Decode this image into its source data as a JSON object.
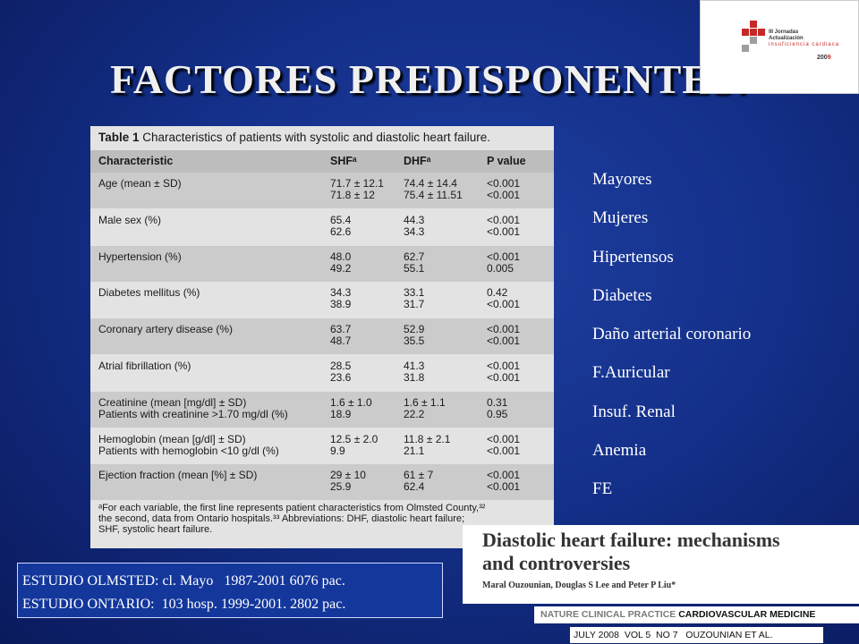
{
  "slide": {
    "title": "FACTORES PREDISPONENTES:"
  },
  "logo": {
    "line1": "III Jornadas",
    "line2": "Actualización",
    "line3": "insuficiencia cardiaca",
    "year_prefix": "200",
    "year_suffix": "9"
  },
  "table": {
    "caption_label": "Table 1",
    "caption_text": " Characteristics of patients with systolic and diastolic heart failure.",
    "headers": [
      "Characteristic",
      "SHFᵃ",
      "DHFᵃ",
      "P value"
    ],
    "rows": [
      {
        "characteristic": [
          "Age (mean ± SD)",
          ""
        ],
        "shf": [
          "71.7 ± 12.1",
          "71.8 ± 12"
        ],
        "dhf": [
          "74.4 ± 14.4",
          "75.4 ± 11.51"
        ],
        "p": [
          "<0.001",
          "<0.001"
        ]
      },
      {
        "characteristic": [
          "Male sex (%)",
          ""
        ],
        "shf": [
          "65.4",
          "62.6"
        ],
        "dhf": [
          "44.3",
          "34.3"
        ],
        "p": [
          "<0.001",
          "<0.001"
        ]
      },
      {
        "characteristic": [
          "Hypertension (%)",
          ""
        ],
        "shf": [
          "48.0",
          "49.2"
        ],
        "dhf": [
          "62.7",
          "55.1"
        ],
        "p": [
          "<0.001",
          "0.005"
        ]
      },
      {
        "characteristic": [
          "Diabetes mellitus (%)",
          ""
        ],
        "shf": [
          "34.3",
          "38.9"
        ],
        "dhf": [
          "33.1",
          "31.7"
        ],
        "p": [
          "0.42",
          "<0.001"
        ]
      },
      {
        "characteristic": [
          "Coronary artery disease (%)",
          ""
        ],
        "shf": [
          "63.7",
          "48.7"
        ],
        "dhf": [
          "52.9",
          "35.5"
        ],
        "p": [
          "<0.001",
          "<0.001"
        ]
      },
      {
        "characteristic": [
          "Atrial fibrillation (%)",
          ""
        ],
        "shf": [
          "28.5",
          "23.6"
        ],
        "dhf": [
          "41.3",
          "31.8"
        ],
        "p": [
          "<0.001",
          "<0.001"
        ]
      },
      {
        "characteristic": [
          "Creatinine (mean [mg/dl] ± SD)",
          "Patients with creatinine >1.70 mg/dl (%)"
        ],
        "shf": [
          "1.6 ± 1.0",
          "18.9"
        ],
        "dhf": [
          "1.6 ± 1.1",
          "22.2"
        ],
        "p": [
          "0.31",
          "0.95"
        ]
      },
      {
        "characteristic": [
          "Hemoglobin (mean [g/dl] ± SD)",
          "Patients with hemoglobin <10 g/dl (%)"
        ],
        "shf": [
          "12.5 ± 2.0",
          "9.9"
        ],
        "dhf": [
          "11.8 ± 2.1",
          "21.1"
        ],
        "p": [
          "<0.001",
          "<0.001"
        ]
      },
      {
        "characteristic": [
          "Ejection fraction (mean [%] ± SD)",
          ""
        ],
        "shf": [
          "29 ± 10",
          "25.9"
        ],
        "dhf": [
          "61 ± 7",
          "62.4"
        ],
        "p": [
          "<0.001",
          "<0.001"
        ]
      }
    ],
    "footnote_lines": [
      "ᵃFor each variable, the first line represents patient characteristics from Olmsted County,³²",
      "the second, data from Ontario hospitals.³³ Abbreviations: DHF, diastolic heart failure;",
      "SHF, systolic heart failure."
    ]
  },
  "factors": [
    "Mayores",
    "Mujeres",
    "Hipertensos",
    "Diabetes",
    "Daño arterial coronario",
    "F.Auricular",
    "Insuf. Renal",
    "Anemia",
    "FE"
  ],
  "studies": {
    "line1": "ESTUDIO OLMSTED: cl. Mayo   1987-2001 6076 pac.",
    "line2": "ESTUDIO ONTARIO:  103 hosp. 1999-2001. 2802 pac."
  },
  "article": {
    "title_line1": "Diastolic heart failure: mechanisms",
    "title_line2": "and controversies",
    "authors": "Maral Ouzounian, Douglas S Lee and Peter P Liu*",
    "journal_gray": "NATURE CLINICAL PRACTICE",
    "journal_dark": " CARDIOVASCULAR MEDICINE",
    "issue": "JULY 2008  VOL 5  NO 7   OUZOUNIAN ET AL."
  }
}
